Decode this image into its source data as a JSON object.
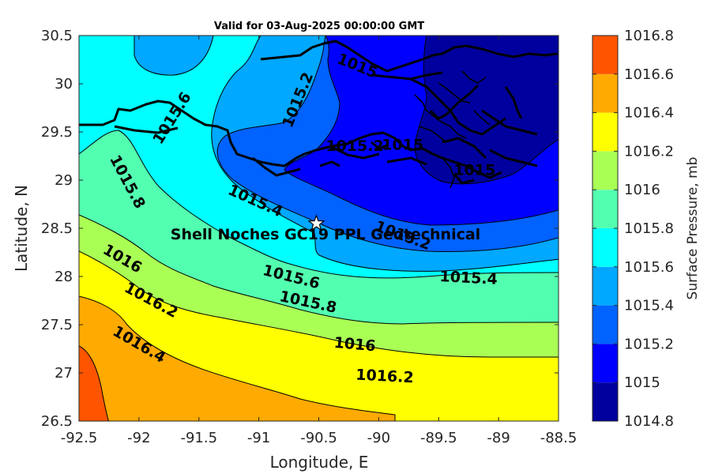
{
  "title": "Valid for 03-Aug-2025 00:00:00 GMT",
  "x_axis_label": "Longitude, E",
  "y_axis_label": "Latitude, N",
  "colorbar_label": "Surface Pressure, mb",
  "annotation": "Shell Noches   GC19 PPL  Geotechnical",
  "marker": {
    "icon": "star-icon",
    "lon": -90.52,
    "lat": 28.55
  },
  "chart_data": {
    "type": "heatmap",
    "title": "Valid for 03-Aug-2025 00:00:00 GMT",
    "xlabel": "Longitude, E",
    "ylabel": "Latitude, N",
    "xlim": [
      -92.5,
      -88.5
    ],
    "ylim": [
      26.5,
      30.5
    ],
    "x_ticks": [
      "-92.5",
      "-92",
      "-91.5",
      "-91",
      "-90.5",
      "-90",
      "-89.5",
      "-89",
      "-88.5"
    ],
    "y_ticks": [
      "26.5",
      "27",
      "27.5",
      "28",
      "28.5",
      "29",
      "29.5",
      "30",
      "30.5"
    ],
    "colorbar": {
      "label": "Surface Pressure, mb",
      "levels": [
        1014.8,
        1015.0,
        1015.2,
        1015.4,
        1015.6,
        1015.8,
        1016.0,
        1016.2,
        1016.4,
        1016.6,
        1016.8
      ],
      "tick_labels": [
        "1014.8",
        "1015",
        "1015.2",
        "1015.4",
        "1015.6",
        "1015.8",
        "1016",
        "1016.2",
        "1016.4",
        "1016.6",
        "1016.8"
      ],
      "colors": [
        "#00009e",
        "#0000ff",
        "#0062ff",
        "#00a8ff",
        "#00ffff",
        "#52ffb0",
        "#aaff55",
        "#ffff00",
        "#ffaa00",
        "#ff5500",
        "#ff0000"
      ]
    },
    "contour_labels": [
      {
        "text": "1015.6",
        "lon": -91.72,
        "lat": 29.64,
        "angle": -58
      },
      {
        "text": "1015.2",
        "lon": -90.67,
        "lat": 29.83,
        "angle": -68
      },
      {
        "text": "1015",
        "lon": -90.18,
        "lat": 30.18,
        "angle": 22
      },
      {
        "text": "1015.8",
        "lon": -92.1,
        "lat": 28.98,
        "angle": 62
      },
      {
        "text": "1015.4",
        "lon": -91.03,
        "lat": 28.78,
        "angle": 24
      },
      {
        "text": "1015.2",
        "lon": -89.8,
        "lat": 28.42,
        "angle": 20
      },
      {
        "text": "1015.4",
        "lon": -89.25,
        "lat": 27.98,
        "angle": 3
      },
      {
        "text": "1015.6",
        "lon": -90.73,
        "lat": 27.99,
        "angle": 14
      },
      {
        "text": "1015.8",
        "lon": -90.59,
        "lat": 27.73,
        "angle": 12
      },
      {
        "text": "1016",
        "lon": -92.14,
        "lat": 28.18,
        "angle": 30
      },
      {
        "text": "1016",
        "lon": -90.2,
        "lat": 27.29,
        "angle": 5
      },
      {
        "text": "1016.2",
        "lon": -91.9,
        "lat": 27.75,
        "angle": 28
      },
      {
        "text": "1016.2",
        "lon": -89.95,
        "lat": 26.96,
        "angle": 3
      },
      {
        "text": "1016.4",
        "lon": -92.0,
        "lat": 27.29,
        "angle": 30
      },
      {
        "text": "1015",
        "lon": -89.2,
        "lat": 29.1,
        "angle": 0
      },
      {
        "text": "1015.2",
        "lon": -90.2,
        "lat": 29.35,
        "angle": 0
      },
      {
        "text": "1015",
        "lon": -89.8,
        "lat": 29.36,
        "angle": 0
      }
    ]
  }
}
